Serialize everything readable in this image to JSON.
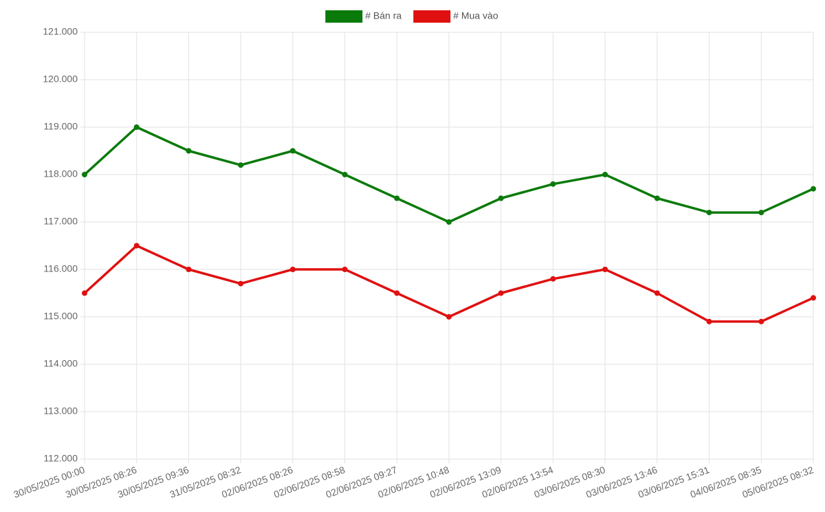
{
  "chart_data": {
    "type": "line",
    "categories": [
      "30/05/2025 00:00",
      "30/05/2025 08:26",
      "30/05/2025 09:36",
      "31/05/2025 08:32",
      "02/06/2025 08:26",
      "02/06/2025 08:58",
      "02/06/2025 09:27",
      "02/06/2025 10:48",
      "02/06/2025 13:09",
      "02/06/2025 13:54",
      "03/06/2025 08:30",
      "03/06/2025 13:46",
      "03/06/2025 15:31",
      "04/06/2025 08:35",
      "05/06/2025 08:32"
    ],
    "series": [
      {
        "name": "# Bán ra",
        "color": "#0a7a0a",
        "values": [
          118000,
          119000,
          118500,
          118200,
          118500,
          118000,
          117500,
          117000,
          117500,
          117800,
          118000,
          117500,
          117200,
          117200,
          117700
        ]
      },
      {
        "name": "# Mua vào",
        "color": "#e01010",
        "values": [
          115500,
          116500,
          116000,
          115700,
          116000,
          116000,
          115500,
          115000,
          115500,
          115800,
          116000,
          115500,
          114900,
          114900,
          115400
        ]
      }
    ],
    "ylim": [
      112000,
      121000
    ],
    "yticks": [
      {
        "value": 112000,
        "label": "112.000"
      },
      {
        "value": 113000,
        "label": "113.000"
      },
      {
        "value": 114000,
        "label": "114.000"
      },
      {
        "value": 115000,
        "label": "115.000"
      },
      {
        "value": 116000,
        "label": "116.000"
      },
      {
        "value": 117000,
        "label": "117.000"
      },
      {
        "value": 118000,
        "label": "118.000"
      },
      {
        "value": 119000,
        "label": "119.000"
      },
      {
        "value": 120000,
        "label": "120.000"
      },
      {
        "value": 121000,
        "label": "121.000"
      }
    ],
    "grid": true,
    "legend": "top"
  }
}
